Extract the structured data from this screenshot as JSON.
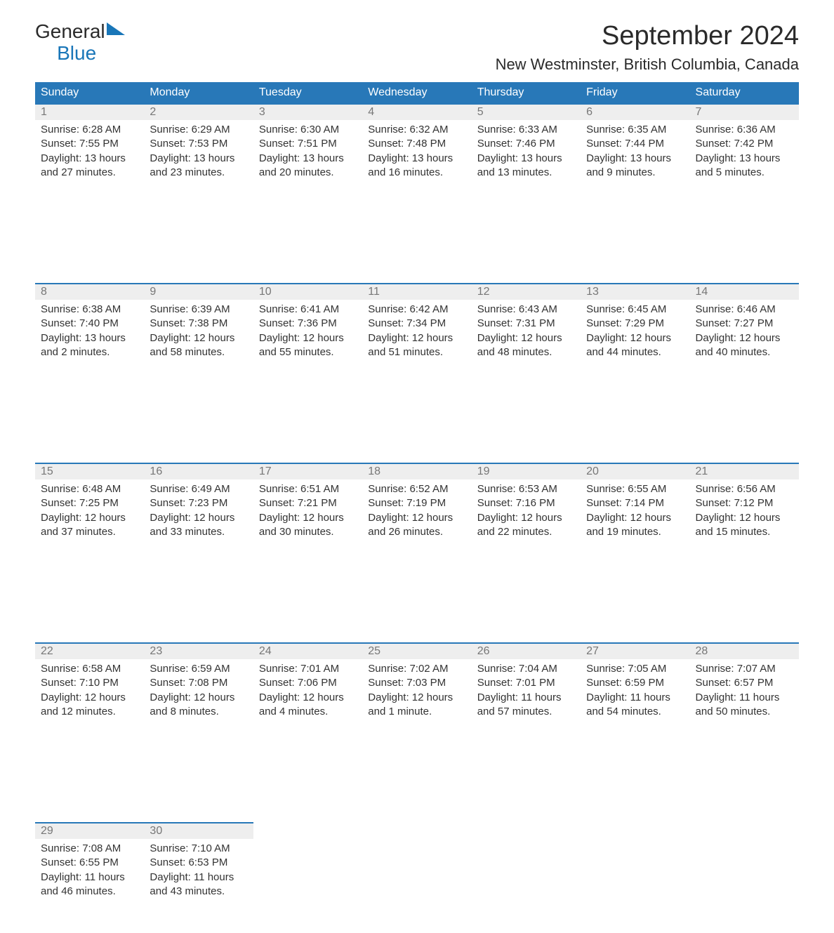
{
  "logo": {
    "line1": "General",
    "line2": "Blue"
  },
  "title": "September 2024",
  "location": "New Westminster, British Columbia, Canada",
  "colors": {
    "header_bg": "#2878b8",
    "header_text": "#ffffff",
    "daynum_bg": "#eeeeee",
    "daynum_text": "#777777",
    "accent_border": "#2878b8",
    "body_text": "#333333",
    "logo_accent": "#1976b8"
  },
  "day_headers": [
    "Sunday",
    "Monday",
    "Tuesday",
    "Wednesday",
    "Thursday",
    "Friday",
    "Saturday"
  ],
  "weeks": [
    [
      {
        "day": "1",
        "sunrise": "Sunrise: 6:28 AM",
        "sunset": "Sunset: 7:55 PM",
        "daylight1": "Daylight: 13 hours",
        "daylight2": "and 27 minutes."
      },
      {
        "day": "2",
        "sunrise": "Sunrise: 6:29 AM",
        "sunset": "Sunset: 7:53 PM",
        "daylight1": "Daylight: 13 hours",
        "daylight2": "and 23 minutes."
      },
      {
        "day": "3",
        "sunrise": "Sunrise: 6:30 AM",
        "sunset": "Sunset: 7:51 PM",
        "daylight1": "Daylight: 13 hours",
        "daylight2": "and 20 minutes."
      },
      {
        "day": "4",
        "sunrise": "Sunrise: 6:32 AM",
        "sunset": "Sunset: 7:48 PM",
        "daylight1": "Daylight: 13 hours",
        "daylight2": "and 16 minutes."
      },
      {
        "day": "5",
        "sunrise": "Sunrise: 6:33 AM",
        "sunset": "Sunset: 7:46 PM",
        "daylight1": "Daylight: 13 hours",
        "daylight2": "and 13 minutes."
      },
      {
        "day": "6",
        "sunrise": "Sunrise: 6:35 AM",
        "sunset": "Sunset: 7:44 PM",
        "daylight1": "Daylight: 13 hours",
        "daylight2": "and 9 minutes."
      },
      {
        "day": "7",
        "sunrise": "Sunrise: 6:36 AM",
        "sunset": "Sunset: 7:42 PM",
        "daylight1": "Daylight: 13 hours",
        "daylight2": "and 5 minutes."
      }
    ],
    [
      {
        "day": "8",
        "sunrise": "Sunrise: 6:38 AM",
        "sunset": "Sunset: 7:40 PM",
        "daylight1": "Daylight: 13 hours",
        "daylight2": "and 2 minutes."
      },
      {
        "day": "9",
        "sunrise": "Sunrise: 6:39 AM",
        "sunset": "Sunset: 7:38 PM",
        "daylight1": "Daylight: 12 hours",
        "daylight2": "and 58 minutes."
      },
      {
        "day": "10",
        "sunrise": "Sunrise: 6:41 AM",
        "sunset": "Sunset: 7:36 PM",
        "daylight1": "Daylight: 12 hours",
        "daylight2": "and 55 minutes."
      },
      {
        "day": "11",
        "sunrise": "Sunrise: 6:42 AM",
        "sunset": "Sunset: 7:34 PM",
        "daylight1": "Daylight: 12 hours",
        "daylight2": "and 51 minutes."
      },
      {
        "day": "12",
        "sunrise": "Sunrise: 6:43 AM",
        "sunset": "Sunset: 7:31 PM",
        "daylight1": "Daylight: 12 hours",
        "daylight2": "and 48 minutes."
      },
      {
        "day": "13",
        "sunrise": "Sunrise: 6:45 AM",
        "sunset": "Sunset: 7:29 PM",
        "daylight1": "Daylight: 12 hours",
        "daylight2": "and 44 minutes."
      },
      {
        "day": "14",
        "sunrise": "Sunrise: 6:46 AM",
        "sunset": "Sunset: 7:27 PM",
        "daylight1": "Daylight: 12 hours",
        "daylight2": "and 40 minutes."
      }
    ],
    [
      {
        "day": "15",
        "sunrise": "Sunrise: 6:48 AM",
        "sunset": "Sunset: 7:25 PM",
        "daylight1": "Daylight: 12 hours",
        "daylight2": "and 37 minutes."
      },
      {
        "day": "16",
        "sunrise": "Sunrise: 6:49 AM",
        "sunset": "Sunset: 7:23 PM",
        "daylight1": "Daylight: 12 hours",
        "daylight2": "and 33 minutes."
      },
      {
        "day": "17",
        "sunrise": "Sunrise: 6:51 AM",
        "sunset": "Sunset: 7:21 PM",
        "daylight1": "Daylight: 12 hours",
        "daylight2": "and 30 minutes."
      },
      {
        "day": "18",
        "sunrise": "Sunrise: 6:52 AM",
        "sunset": "Sunset: 7:19 PM",
        "daylight1": "Daylight: 12 hours",
        "daylight2": "and 26 minutes."
      },
      {
        "day": "19",
        "sunrise": "Sunrise: 6:53 AM",
        "sunset": "Sunset: 7:16 PM",
        "daylight1": "Daylight: 12 hours",
        "daylight2": "and 22 minutes."
      },
      {
        "day": "20",
        "sunrise": "Sunrise: 6:55 AM",
        "sunset": "Sunset: 7:14 PM",
        "daylight1": "Daylight: 12 hours",
        "daylight2": "and 19 minutes."
      },
      {
        "day": "21",
        "sunrise": "Sunrise: 6:56 AM",
        "sunset": "Sunset: 7:12 PM",
        "daylight1": "Daylight: 12 hours",
        "daylight2": "and 15 minutes."
      }
    ],
    [
      {
        "day": "22",
        "sunrise": "Sunrise: 6:58 AM",
        "sunset": "Sunset: 7:10 PM",
        "daylight1": "Daylight: 12 hours",
        "daylight2": "and 12 minutes."
      },
      {
        "day": "23",
        "sunrise": "Sunrise: 6:59 AM",
        "sunset": "Sunset: 7:08 PM",
        "daylight1": "Daylight: 12 hours",
        "daylight2": "and 8 minutes."
      },
      {
        "day": "24",
        "sunrise": "Sunrise: 7:01 AM",
        "sunset": "Sunset: 7:06 PM",
        "daylight1": "Daylight: 12 hours",
        "daylight2": "and 4 minutes."
      },
      {
        "day": "25",
        "sunrise": "Sunrise: 7:02 AM",
        "sunset": "Sunset: 7:03 PM",
        "daylight1": "Daylight: 12 hours",
        "daylight2": "and 1 minute."
      },
      {
        "day": "26",
        "sunrise": "Sunrise: 7:04 AM",
        "sunset": "Sunset: 7:01 PM",
        "daylight1": "Daylight: 11 hours",
        "daylight2": "and 57 minutes."
      },
      {
        "day": "27",
        "sunrise": "Sunrise: 7:05 AM",
        "sunset": "Sunset: 6:59 PM",
        "daylight1": "Daylight: 11 hours",
        "daylight2": "and 54 minutes."
      },
      {
        "day": "28",
        "sunrise": "Sunrise: 7:07 AM",
        "sunset": "Sunset: 6:57 PM",
        "daylight1": "Daylight: 11 hours",
        "daylight2": "and 50 minutes."
      }
    ],
    [
      {
        "day": "29",
        "sunrise": "Sunrise: 7:08 AM",
        "sunset": "Sunset: 6:55 PM",
        "daylight1": "Daylight: 11 hours",
        "daylight2": "and 46 minutes."
      },
      {
        "day": "30",
        "sunrise": "Sunrise: 7:10 AM",
        "sunset": "Sunset: 6:53 PM",
        "daylight1": "Daylight: 11 hours",
        "daylight2": "and 43 minutes."
      },
      null,
      null,
      null,
      null,
      null
    ]
  ]
}
